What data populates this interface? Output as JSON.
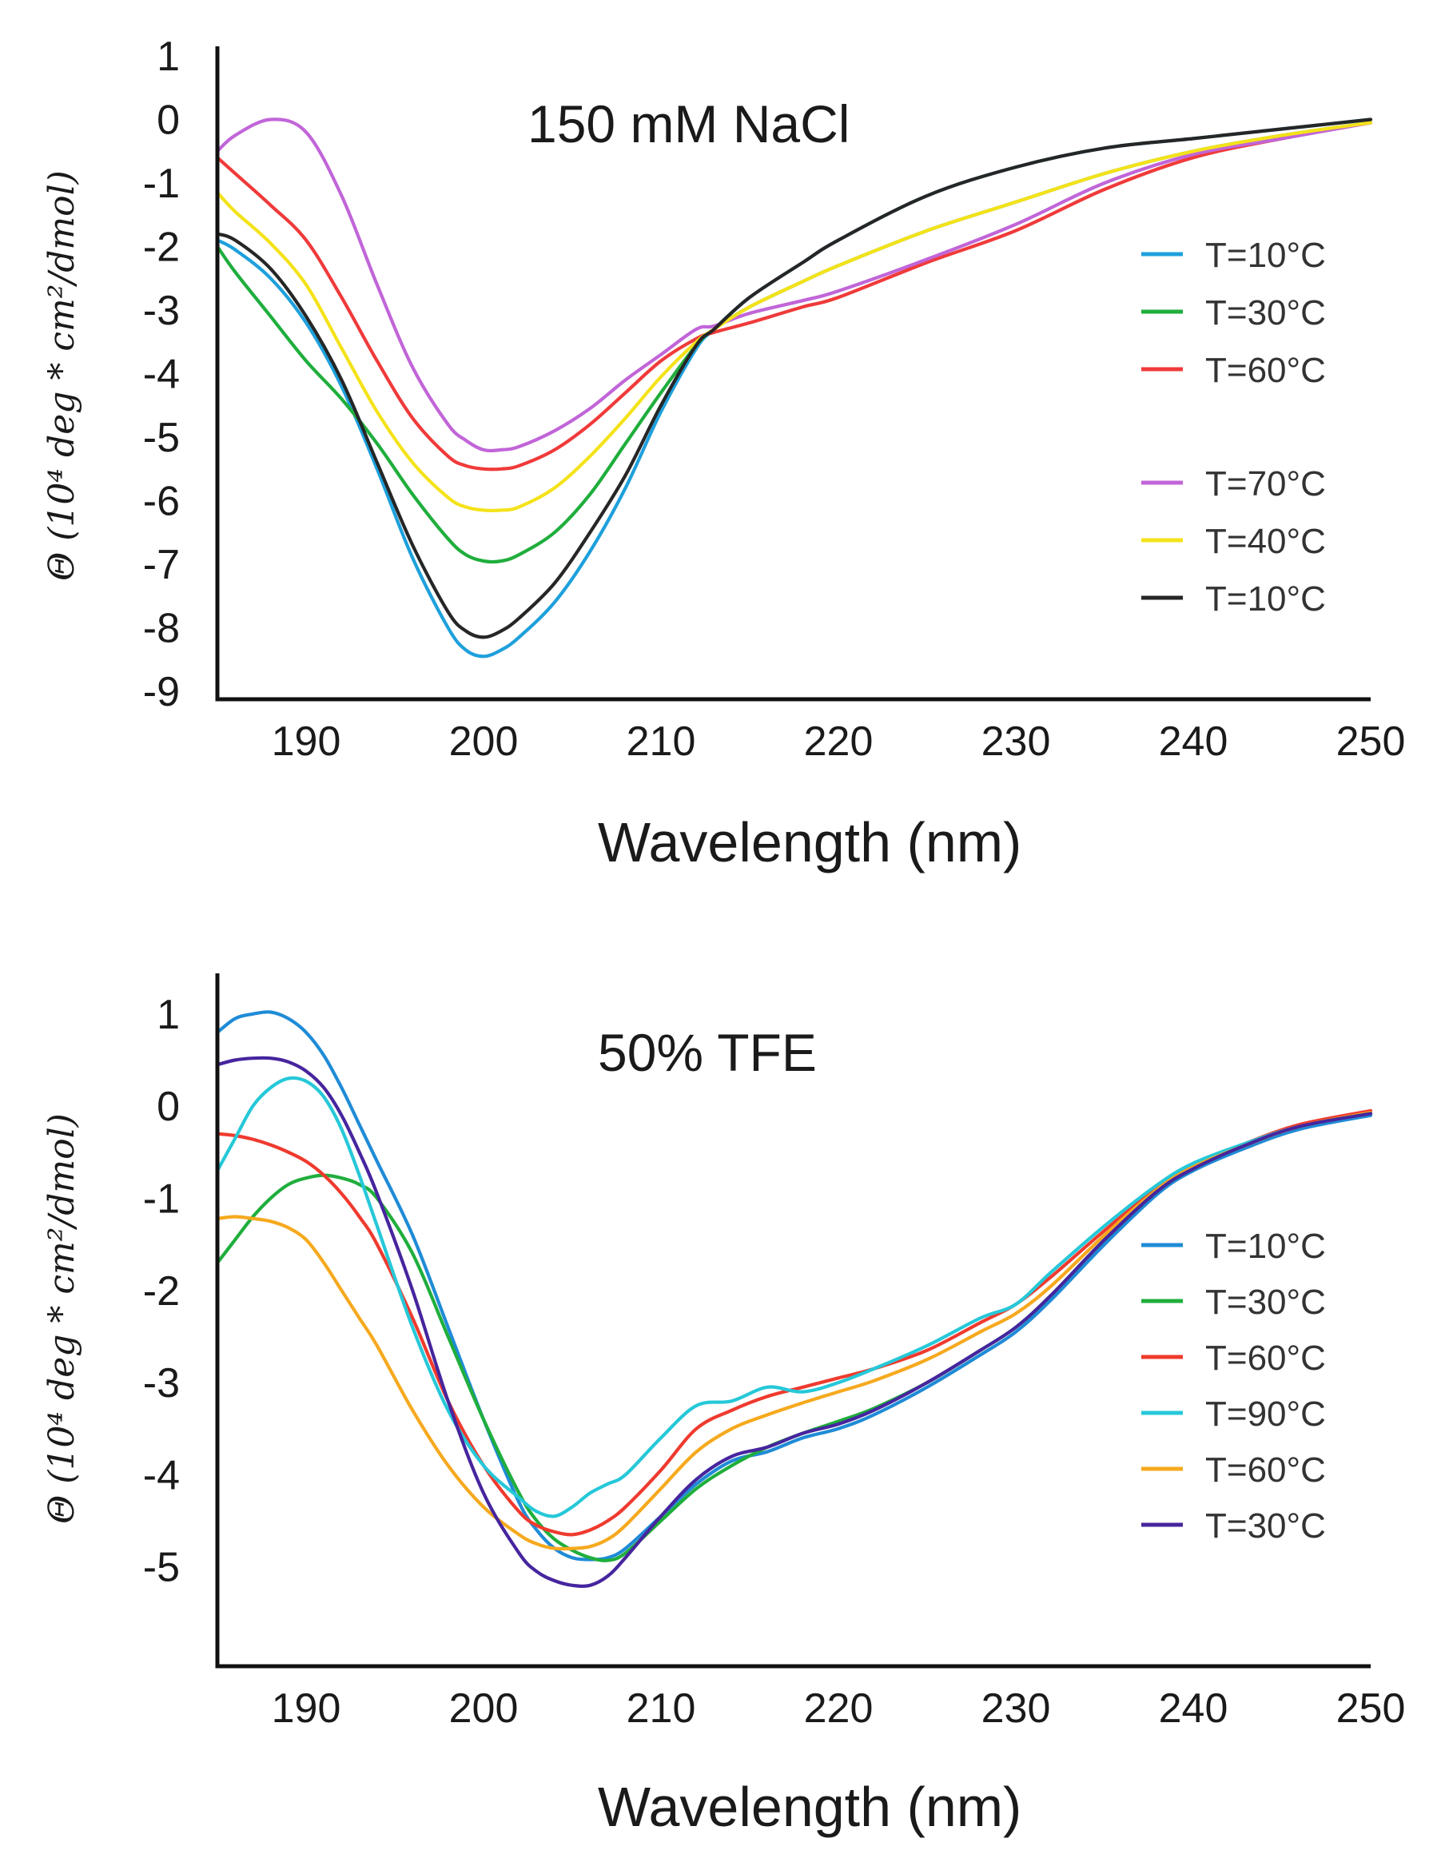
{
  "chart_data": [
    {
      "type": "line",
      "title": "150 mM NaCl",
      "xlabel": "Wavelength (nm)",
      "ylabel": "Θ (10⁴ deg * cm²/dmol)",
      "xlim": [
        185,
        250
      ],
      "ylim": [
        -9,
        1
      ],
      "xticks": [
        190,
        200,
        210,
        220,
        230,
        240,
        250
      ],
      "yticks": [
        1,
        0,
        -1,
        -2,
        -3,
        -4,
        -5,
        -6,
        -7,
        -8,
        -9
      ],
      "ytick_labels": [
        "1",
        "0",
        "-1",
        "-2",
        "-3",
        "-4",
        "-5",
        "-6",
        "-7",
        "-8",
        "-9"
      ],
      "legend_position": "right",
      "grid": false,
      "x": [
        185,
        186,
        188,
        190,
        192,
        194,
        196,
        198,
        199,
        200,
        201,
        202,
        204,
        206,
        208,
        210,
        212,
        213,
        215,
        218,
        220,
        225,
        230,
        235,
        240,
        245,
        250
      ],
      "series": [
        {
          "name": "T=10°C",
          "color": "#1ea0dc",
          "legend_gap": false,
          "values": [
            -1.9,
            -2.05,
            -2.5,
            -3.2,
            -4.2,
            -5.5,
            -6.9,
            -8.0,
            -8.35,
            -8.45,
            -8.35,
            -8.15,
            -7.6,
            -6.8,
            -5.8,
            -4.6,
            -3.6,
            -3.3,
            -2.8,
            -2.25,
            -1.9,
            -1.2,
            -0.75,
            -0.45,
            -0.3,
            -0.15,
            0.0
          ]
        },
        {
          "name": "T=30°C",
          "color": "#1fae3c",
          "legend_gap": false,
          "values": [
            -2.0,
            -2.4,
            -3.1,
            -3.8,
            -4.4,
            -5.1,
            -5.9,
            -6.6,
            -6.85,
            -6.95,
            -6.95,
            -6.85,
            -6.5,
            -5.9,
            -5.1,
            -4.3,
            -3.55,
            -3.3,
            -2.95,
            -2.55,
            -2.3,
            -1.75,
            -1.3,
            -0.85,
            -0.5,
            -0.25,
            -0.05
          ]
        },
        {
          "name": "T=60°C",
          "color": "#f03a3a",
          "legend_gap": false,
          "values": [
            -0.6,
            -0.85,
            -1.35,
            -1.9,
            -2.8,
            -3.8,
            -4.7,
            -5.3,
            -5.45,
            -5.5,
            -5.5,
            -5.45,
            -5.2,
            -4.8,
            -4.3,
            -3.8,
            -3.45,
            -3.35,
            -3.2,
            -2.95,
            -2.8,
            -2.25,
            -1.75,
            -1.1,
            -0.6,
            -0.3,
            -0.05
          ]
        },
        {
          "name": "T=70°C",
          "color": "#c165d8",
          "legend_gap": true,
          "values": [
            -0.5,
            -0.25,
            0.0,
            -0.2,
            -1.2,
            -2.6,
            -3.9,
            -4.8,
            -5.05,
            -5.2,
            -5.2,
            -5.15,
            -4.9,
            -4.55,
            -4.1,
            -3.7,
            -3.3,
            -3.25,
            -3.05,
            -2.85,
            -2.7,
            -2.2,
            -1.65,
            -1.0,
            -0.55,
            -0.3,
            -0.05
          ]
        },
        {
          "name": "T=40°C",
          "color": "#f4e21a",
          "legend_gap": false,
          "values": [
            -1.15,
            -1.45,
            -1.95,
            -2.6,
            -3.6,
            -4.6,
            -5.4,
            -5.95,
            -6.1,
            -6.15,
            -6.15,
            -6.1,
            -5.8,
            -5.3,
            -4.7,
            -4.05,
            -3.5,
            -3.3,
            -2.95,
            -2.55,
            -2.3,
            -1.75,
            -1.3,
            -0.85,
            -0.5,
            -0.25,
            -0.05
          ]
        },
        {
          "name": "T=10°C",
          "color": "#262626",
          "legend_gap": false,
          "values": [
            -1.8,
            -1.9,
            -2.35,
            -3.1,
            -4.1,
            -5.4,
            -6.7,
            -7.75,
            -8.05,
            -8.15,
            -8.05,
            -7.85,
            -7.3,
            -6.5,
            -5.6,
            -4.5,
            -3.55,
            -3.3,
            -2.8,
            -2.25,
            -1.9,
            -1.2,
            -0.75,
            -0.45,
            -0.3,
            -0.15,
            0.0
          ]
        }
      ]
    },
    {
      "type": "line",
      "title": "50% TFE",
      "xlabel": "Wavelength (nm)",
      "ylabel": "Θ (10⁴ deg * cm²/dmol)",
      "xlim": [
        185,
        250
      ],
      "ylim": [
        -6,
        1.25
      ],
      "xticks": [
        190,
        200,
        210,
        220,
        230,
        240,
        250
      ],
      "yticks": [
        1,
        0,
        -1,
        -2,
        -3,
        -4,
        -5
      ],
      "ytick_labels": [
        "1",
        "0",
        "-1",
        "-2",
        "-3",
        "-4",
        "-5"
      ],
      "legend_position": "right",
      "grid": false,
      "x": [
        185,
        186,
        187,
        188,
        189,
        190,
        191,
        192,
        193,
        194,
        196,
        198,
        200,
        202,
        203,
        204,
        205,
        206,
        207,
        208,
        210,
        212,
        214,
        216,
        218,
        220,
        222,
        225,
        228,
        230,
        232,
        235,
        238,
        240,
        243,
        246,
        250
      ],
      "series": [
        {
          "name": "T=10°C",
          "color": "#1f8bd6",
          "values": [
            0.8,
            0.95,
            1.0,
            1.02,
            0.95,
            0.8,
            0.55,
            0.2,
            -0.2,
            -0.6,
            -1.4,
            -2.4,
            -3.4,
            -4.3,
            -4.6,
            -4.8,
            -4.9,
            -4.92,
            -4.9,
            -4.8,
            -4.45,
            -4.1,
            -3.85,
            -3.75,
            -3.6,
            -3.5,
            -3.35,
            -3.05,
            -2.7,
            -2.45,
            -2.1,
            -1.5,
            -0.95,
            -0.7,
            -0.45,
            -0.25,
            -0.1
          ]
        },
        {
          "name": "T=30°C",
          "color": "#1fae3c",
          "values": [
            -1.7,
            -1.45,
            -1.2,
            -1.0,
            -0.85,
            -0.78,
            -0.75,
            -0.78,
            -0.85,
            -1.0,
            -1.6,
            -2.5,
            -3.4,
            -4.2,
            -4.5,
            -4.7,
            -4.82,
            -4.9,
            -4.93,
            -4.85,
            -4.5,
            -4.15,
            -3.9,
            -3.7,
            -3.55,
            -3.42,
            -3.28,
            -3.0,
            -2.65,
            -2.4,
            -2.05,
            -1.45,
            -0.92,
            -0.68,
            -0.42,
            -0.22,
            -0.08
          ]
        },
        {
          "name": "T=60°C",
          "color": "#ef3a2e",
          "values": [
            -0.3,
            -0.32,
            -0.36,
            -0.42,
            -0.5,
            -0.6,
            -0.75,
            -0.95,
            -1.2,
            -1.5,
            -2.3,
            -3.2,
            -3.9,
            -4.4,
            -4.55,
            -4.62,
            -4.65,
            -4.6,
            -4.5,
            -4.35,
            -3.95,
            -3.5,
            -3.3,
            -3.15,
            -3.05,
            -2.95,
            -2.85,
            -2.65,
            -2.35,
            -2.15,
            -1.85,
            -1.35,
            -0.88,
            -0.65,
            -0.4,
            -0.2,
            -0.05
          ]
        },
        {
          "name": "T=90°C",
          "color": "#26c8d8",
          "values": [
            -0.7,
            -0.35,
            0.0,
            0.2,
            0.3,
            0.27,
            0.1,
            -0.25,
            -0.75,
            -1.3,
            -2.4,
            -3.3,
            -3.9,
            -4.25,
            -4.4,
            -4.45,
            -4.35,
            -4.2,
            -4.1,
            -4.0,
            -3.6,
            -3.25,
            -3.2,
            -3.05,
            -3.1,
            -3.0,
            -2.85,
            -2.6,
            -2.3,
            -2.15,
            -1.8,
            -1.3,
            -0.85,
            -0.62,
            -0.4,
            -0.22,
            -0.08
          ]
        },
        {
          "name": "T=60°C",
          "color": "#f6a91e",
          "values": [
            -1.22,
            -1.2,
            -1.22,
            -1.25,
            -1.32,
            -1.45,
            -1.7,
            -2.0,
            -2.3,
            -2.6,
            -3.3,
            -3.9,
            -4.35,
            -4.65,
            -4.75,
            -4.8,
            -4.8,
            -4.78,
            -4.7,
            -4.55,
            -4.15,
            -3.75,
            -3.5,
            -3.35,
            -3.22,
            -3.1,
            -2.98,
            -2.75,
            -2.45,
            -2.25,
            -1.95,
            -1.4,
            -0.9,
            -0.66,
            -0.42,
            -0.22,
            -0.07
          ]
        },
        {
          "name": "T=30°C",
          "color": "#46259e",
          "values": [
            0.45,
            0.5,
            0.52,
            0.52,
            0.48,
            0.38,
            0.2,
            -0.1,
            -0.5,
            -0.95,
            -2.0,
            -3.2,
            -4.2,
            -4.85,
            -5.05,
            -5.15,
            -5.2,
            -5.2,
            -5.1,
            -4.9,
            -4.45,
            -4.05,
            -3.8,
            -3.7,
            -3.55,
            -3.45,
            -3.3,
            -3.0,
            -2.65,
            -2.4,
            -2.05,
            -1.45,
            -0.92,
            -0.68,
            -0.42,
            -0.22,
            -0.08
          ]
        }
      ]
    }
  ]
}
